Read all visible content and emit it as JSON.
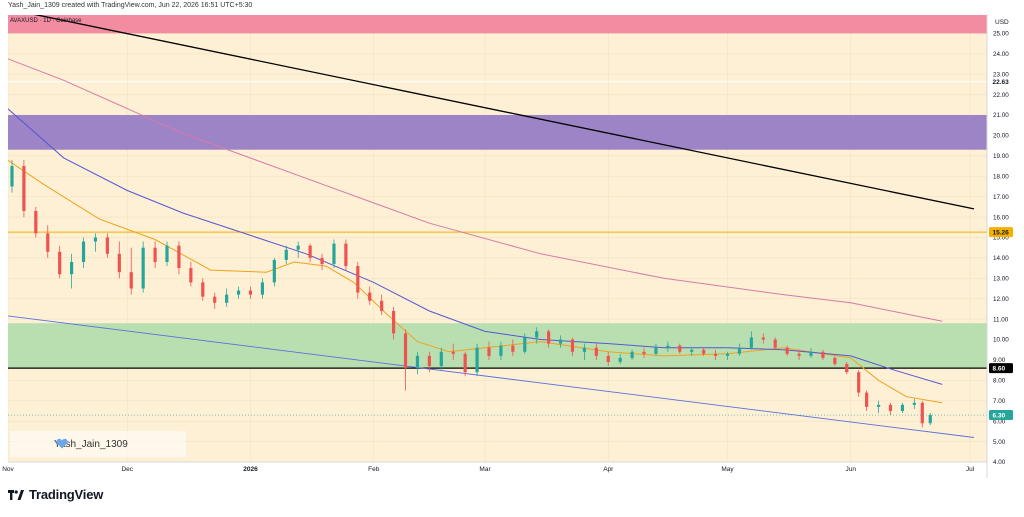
{
  "header": {
    "caption": "Yash_Jain_1309 created with TradingView.com, Jun 22, 2026 16:51 UTC+5:30",
    "symbol": "AVAXUSD · 1D · Coinbase"
  },
  "watermark": {
    "text": "Yash_Jain_1309",
    "icon": "heart-icon"
  },
  "brand": {
    "text": "TradingView",
    "icon": "tradingview-logo-icon"
  },
  "colors": {
    "background": "#fdf0d5",
    "resistance_zone": "#f28ca0",
    "purple_zone": "#9d84c6",
    "green_zone": "#b9dfb1",
    "up_candle": "#26a69a",
    "down_candle": "#ef5350",
    "ema_fast": "#f0a21c",
    "ema_mid": "#5856d6",
    "ema_slow": "#d77aa8",
    "trendline": "#000000",
    "lower_channel": "#5a6ee0",
    "support_line": "#000000",
    "level_line": "#f5b000"
  },
  "chart_data": {
    "type": "candlestick",
    "currency": "USD",
    "y_range": [
      4.0,
      25.9
    ],
    "y_ticks": [
      4.0,
      5.0,
      6.0,
      7.0,
      8.0,
      9.0,
      10.0,
      11.0,
      12.0,
      13.0,
      14.0,
      15.0,
      16.0,
      17.0,
      18.0,
      19.0,
      20.0,
      21.0,
      22.0,
      23.0,
      24.0,
      25.0
    ],
    "x_ticks": [
      "Nov",
      "Dec",
      "2026",
      "Feb",
      "Mar",
      "Apr",
      "May",
      "Jun",
      "Jul"
    ],
    "price_labels": [
      {
        "value": 22.63,
        "text": "22.63",
        "bg": "#ffffff",
        "fg": "#131722"
      },
      {
        "value": 15.26,
        "text": "15.26",
        "bg": "#f5b000",
        "fg": "#131722"
      },
      {
        "value": 8.6,
        "text": "8.60",
        "bg": "#000000",
        "fg": "#ffffff"
      },
      {
        "value": 6.3,
        "text": "6.30",
        "bg": "#26a69a",
        "fg": "#ffffff"
      }
    ],
    "zones": [
      {
        "from": 25.0,
        "to": 25.9,
        "color": "resistance_zone"
      },
      {
        "from": 19.3,
        "to": 21.0,
        "color": "purple_zone"
      },
      {
        "from": 8.6,
        "to": 10.8,
        "color": "green_zone"
      }
    ],
    "horizontal_lines": [
      {
        "value": 22.63,
        "color": "#ffffff"
      },
      {
        "value": 15.26,
        "color": "level_line"
      },
      {
        "value": 8.6,
        "color": "support_line"
      }
    ],
    "trendlines": [
      {
        "from": [
          "Oct 22",
          26.6
        ],
        "to": [
          "Jul 2",
          16.4
        ],
        "color": "trendline"
      },
      {
        "from": [
          "Oct 22",
          11.4
        ],
        "to": [
          "Jul 2",
          5.2
        ],
        "color": "lower_channel"
      }
    ],
    "moving_averages": [
      {
        "color": "ema_fast",
        "points": [
          [
            "Oct 22",
            21.0
          ],
          [
            "Oct 28",
            19.3
          ],
          [
            "Nov 10",
            17.6
          ],
          [
            "Nov 24",
            15.9
          ],
          [
            "Dec 8",
            14.9
          ],
          [
            "Dec 22",
            13.4
          ],
          [
            "Jan 5",
            13.3
          ],
          [
            "Jan 12",
            13.8
          ],
          [
            "Jan 20",
            13.6
          ],
          [
            "Jan 27",
            12.8
          ],
          [
            "Feb 4",
            11.3
          ],
          [
            "Feb 12",
            9.9
          ],
          [
            "Feb 20",
            9.4
          ],
          [
            "Mar 1",
            9.6
          ],
          [
            "Mar 15",
            9.9
          ],
          [
            "Apr 1",
            9.4
          ],
          [
            "Apr 15",
            9.2
          ],
          [
            "May 1",
            9.3
          ],
          [
            "May 15",
            9.6
          ],
          [
            "Jun 1",
            9.1
          ],
          [
            "Jun 8",
            8.0
          ],
          [
            "Jun 15",
            7.2
          ],
          [
            "Jun 24",
            6.9
          ]
        ]
      },
      {
        "color": "ema_mid",
        "points": [
          [
            "Oct 22",
            23.6
          ],
          [
            "Nov 1",
            21.3
          ],
          [
            "Nov 15",
            18.9
          ],
          [
            "Dec 1",
            17.3
          ],
          [
            "Dec 15",
            16.2
          ],
          [
            "Jan 1",
            15.1
          ],
          [
            "Jan 15",
            14.2
          ],
          [
            "Feb 1",
            12.8
          ],
          [
            "Feb 15",
            11.4
          ],
          [
            "Mar 1",
            10.4
          ],
          [
            "Mar 15",
            10.0
          ],
          [
            "Apr 1",
            9.8
          ],
          [
            "Apr 15",
            9.6
          ],
          [
            "May 1",
            9.6
          ],
          [
            "May 15",
            9.5
          ],
          [
            "Jun 1",
            9.2
          ],
          [
            "Jun 12",
            8.5
          ],
          [
            "Jun 24",
            7.8
          ]
        ]
      },
      {
        "color": "ema_slow",
        "points": [
          [
            "Oct 22",
            24.5
          ],
          [
            "Nov 15",
            22.7
          ],
          [
            "Dec 15",
            20.1
          ],
          [
            "Jan 15",
            17.9
          ],
          [
            "Feb 15",
            15.7
          ],
          [
            "Mar 15",
            14.2
          ],
          [
            "Apr 15",
            13.0
          ],
          [
            "May 15",
            12.2
          ],
          [
            "Jun 1",
            11.8
          ],
          [
            "Jun 24",
            10.9
          ]
        ]
      }
    ],
    "candles": [
      [
        "Oct 23",
        18.5,
        18.9,
        18.0,
        18.7
      ],
      [
        "Oct 25",
        18.7,
        19.0,
        17.0,
        17.3
      ],
      [
        "Oct 27",
        17.3,
        17.6,
        15.0,
        15.8
      ],
      [
        "Oct 30",
        15.8,
        17.8,
        15.5,
        17.5
      ],
      [
        "Nov 2",
        17.5,
        18.8,
        17.2,
        18.5
      ],
      [
        "Nov 5",
        18.5,
        18.8,
        16.0,
        16.3
      ],
      [
        "Nov 8",
        16.3,
        16.5,
        15.0,
        15.2
      ],
      [
        "Nov 11",
        15.2,
        15.6,
        14.0,
        14.3
      ],
      [
        "Nov 14",
        14.3,
        14.6,
        13.0,
        13.2
      ],
      [
        "Nov 17",
        13.2,
        14.2,
        12.5,
        13.8
      ],
      [
        "Nov 20",
        13.8,
        15.0,
        13.5,
        14.8
      ],
      [
        "Nov 23",
        14.8,
        15.2,
        14.3,
        15.0
      ],
      [
        "Nov 26",
        15.0,
        15.2,
        14.0,
        14.2
      ],
      [
        "Nov 29",
        14.2,
        14.8,
        13.0,
        13.3
      ],
      [
        "Dec 2",
        13.3,
        14.5,
        12.2,
        12.5
      ],
      [
        "Dec 5",
        12.5,
        14.8,
        12.3,
        14.5
      ],
      [
        "Dec 8",
        14.5,
        14.8,
        13.5,
        13.8
      ],
      [
        "Dec 11",
        13.8,
        14.8,
        13.6,
        14.6
      ],
      [
        "Dec 14",
        14.6,
        14.8,
        13.2,
        13.5
      ],
      [
        "Dec 17",
        13.5,
        13.8,
        12.6,
        12.8
      ],
      [
        "Dec 20",
        12.8,
        13.0,
        11.9,
        12.1
      ],
      [
        "Dec 23",
        12.1,
        12.3,
        11.5,
        11.8
      ],
      [
        "Dec 26",
        11.8,
        12.5,
        11.6,
        12.2
      ],
      [
        "Dec 29",
        12.2,
        12.6,
        12.0,
        12.4
      ],
      [
        "Jan 1",
        12.4,
        12.6,
        12.0,
        12.2
      ],
      [
        "Jan 4",
        12.2,
        13.0,
        12.0,
        12.8
      ],
      [
        "Jan 7",
        12.8,
        14.0,
        12.6,
        13.9
      ],
      [
        "Jan 10",
        13.9,
        14.6,
        13.7,
        14.4
      ],
      [
        "Jan 13",
        14.4,
        14.8,
        14.0,
        14.6
      ],
      [
        "Jan 16",
        14.6,
        14.7,
        13.8,
        14.0
      ],
      [
        "Jan 19",
        14.0,
        14.2,
        13.4,
        13.7
      ],
      [
        "Jan 22",
        13.7,
        14.9,
        13.5,
        14.7
      ],
      [
        "Jan 25",
        14.7,
        14.9,
        13.4,
        13.6
      ],
      [
        "Jan 28",
        13.6,
        13.8,
        12.0,
        12.3
      ],
      [
        "Jan 31",
        12.3,
        12.6,
        11.7,
        11.9
      ],
      [
        "Feb 3",
        11.9,
        12.2,
        11.2,
        11.4
      ],
      [
        "Feb 6",
        11.4,
        11.6,
        10.0,
        10.3
      ],
      [
        "Feb 9",
        10.3,
        10.5,
        7.5,
        8.6
      ],
      [
        "Feb 12",
        8.6,
        9.4,
        8.3,
        9.2
      ],
      [
        "Feb 15",
        9.2,
        9.4,
        8.4,
        8.7
      ],
      [
        "Feb 18",
        8.7,
        9.6,
        8.5,
        9.4
      ],
      [
        "Feb 21",
        9.4,
        9.8,
        9.0,
        9.3
      ],
      [
        "Feb 24",
        9.3,
        9.4,
        8.2,
        8.4
      ],
      [
        "Feb 27",
        8.4,
        9.8,
        8.2,
        9.6
      ],
      [
        "Mar 2",
        9.6,
        9.9,
        9.0,
        9.2
      ],
      [
        "Mar 5",
        9.2,
        9.9,
        9.0,
        9.7
      ],
      [
        "Mar 8",
        9.7,
        10.0,
        9.2,
        9.4
      ],
      [
        "Mar 11",
        9.4,
        10.3,
        9.3,
        10.1
      ],
      [
        "Mar 14",
        10.1,
        10.6,
        9.8,
        10.4
      ],
      [
        "Mar 17",
        10.4,
        10.5,
        9.6,
        9.8
      ],
      [
        "Mar 20",
        9.8,
        10.2,
        9.6,
        10.0
      ],
      [
        "Mar 23",
        10.0,
        10.1,
        9.2,
        9.4
      ],
      [
        "Mar 26",
        9.4,
        9.8,
        9.0,
        9.6
      ],
      [
        "Mar 29",
        9.6,
        9.8,
        9.0,
        9.2
      ],
      [
        "Apr 1",
        9.2,
        9.4,
        8.7,
        8.9
      ],
      [
        "Apr 4",
        8.9,
        9.3,
        8.8,
        9.1
      ],
      [
        "Apr 7",
        9.1,
        9.5,
        9.0,
        9.4
      ],
      [
        "Apr 10",
        9.4,
        9.6,
        9.1,
        9.3
      ],
      [
        "Apr 13",
        9.3,
        9.8,
        9.2,
        9.6
      ],
      [
        "Apr 16",
        9.6,
        9.9,
        9.4,
        9.7
      ],
      [
        "Apr 19",
        9.7,
        9.8,
        9.3,
        9.4
      ],
      [
        "Apr 22",
        9.4,
        9.6,
        9.2,
        9.5
      ],
      [
        "Apr 25",
        9.5,
        9.6,
        9.2,
        9.3
      ],
      [
        "Apr 28",
        9.3,
        9.5,
        9.0,
        9.2
      ],
      [
        "May 1",
        9.2,
        9.4,
        9.0,
        9.3
      ],
      [
        "May 4",
        9.3,
        9.8,
        9.2,
        9.6
      ],
      [
        "May 7",
        9.6,
        10.4,
        9.5,
        10.1
      ],
      [
        "May 10",
        10.1,
        10.3,
        9.8,
        10.0
      ],
      [
        "May 13",
        10.0,
        10.1,
        9.5,
        9.6
      ],
      [
        "May 16",
        9.6,
        9.7,
        9.2,
        9.3
      ],
      [
        "May 19",
        9.3,
        9.5,
        9.0,
        9.2
      ],
      [
        "May 22",
        9.2,
        9.6,
        9.1,
        9.4
      ],
      [
        "May 25",
        9.4,
        9.5,
        9.0,
        9.1
      ],
      [
        "May 28",
        9.1,
        9.2,
        8.7,
        8.8
      ],
      [
        "May 31",
        8.8,
        8.9,
        8.3,
        8.4
      ],
      [
        "Jun 3",
        8.4,
        8.5,
        7.2,
        7.4
      ],
      [
        "Jun 5",
        7.4,
        7.5,
        6.5,
        6.7
      ],
      [
        "Jun 8",
        6.7,
        7.0,
        6.4,
        6.8
      ],
      [
        "Jun 11",
        6.8,
        6.9,
        6.3,
        6.5
      ],
      [
        "Jun 14",
        6.5,
        6.9,
        6.4,
        6.8
      ],
      [
        "Jun 17",
        6.8,
        7.1,
        6.6,
        6.9
      ],
      [
        "Jun 19",
        6.9,
        7.0,
        5.7,
        5.9
      ],
      [
        "Jun 21",
        5.9,
        6.4,
        5.8,
        6.3
      ]
    ]
  }
}
